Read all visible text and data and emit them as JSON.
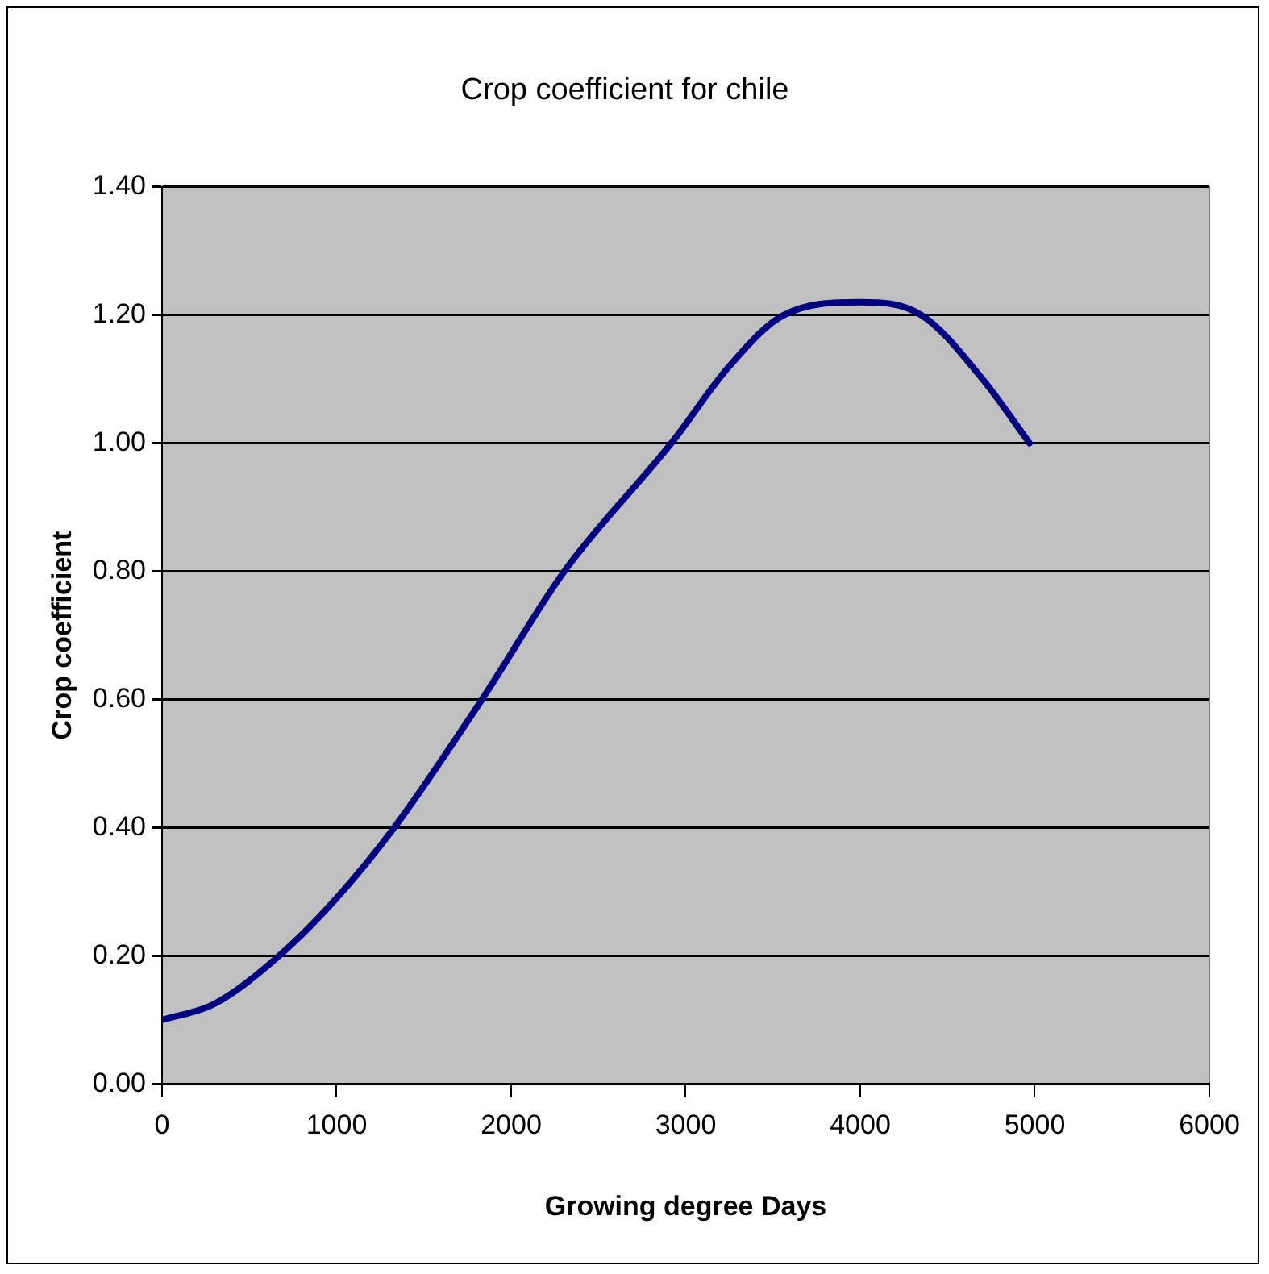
{
  "chart_data": {
    "type": "line",
    "title": "Crop coefficient for chile",
    "xlabel": "Growing degree Days",
    "ylabel": "Crop coefficient",
    "x": [
      0,
      300,
      670,
      1000,
      1330,
      1833,
      2305,
      2918,
      3250,
      3563,
      4000,
      4349,
      4700,
      4970
    ],
    "series": [
      {
        "color": "#000080",
        "values": [
          0.1,
          0.125,
          0.2,
          0.29,
          0.4,
          0.6,
          0.8,
          1.0,
          1.12,
          1.2,
          1.22,
          1.2,
          1.1,
          1.0
        ]
      }
    ],
    "xlim": [
      0,
      6000
    ],
    "xticks": [
      0,
      1000,
      2000,
      3000,
      4000,
      5000,
      6000
    ],
    "ylim": [
      0,
      1.4
    ],
    "yticks": [
      {
        "value": 0,
        "label": "0.00"
      },
      {
        "value": 0.2,
        "label": "0.20"
      },
      {
        "value": 0.4,
        "label": "0.40"
      },
      {
        "value": 0.6,
        "label": "0.60"
      },
      {
        "value": 0.8,
        "label": "0.80"
      },
      {
        "value": 1.0,
        "label": "1.00"
      },
      {
        "value": 1.2,
        "label": "1.20"
      },
      {
        "value": 1.4,
        "label": "1.40"
      }
    ],
    "grid": "y",
    "legend": false,
    "marker": "none",
    "line_style": "solid"
  }
}
